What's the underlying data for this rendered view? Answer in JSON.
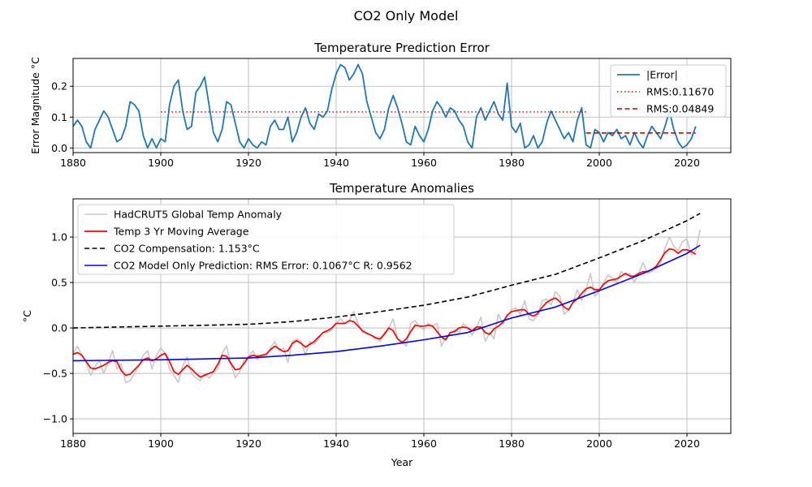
{
  "figure": {
    "title": "CO2 Only Model"
  },
  "chart_data": [
    {
      "type": "line",
      "title": "Temperature Prediction Error",
      "xlabel": "",
      "ylabel": "Error Magnitude °C",
      "xlim": [
        1880,
        2030
      ],
      "ylim": [
        -0.015,
        0.29
      ],
      "x_ticks": [
        1880,
        1900,
        1920,
        1940,
        1960,
        1980,
        2000,
        2020
      ],
      "y_ticks": [
        0.0,
        0.1,
        0.2
      ],
      "y_tick_labels": [
        "0.0",
        "0.1",
        "0.2"
      ],
      "grid": true,
      "legend_position": "upper right",
      "colors": {
        "error": "#1f77b4",
        "rms1": "#ff0000",
        "rms2": "#cc0000"
      },
      "series": [
        {
          "name": "|Error|",
          "style": "solid",
          "x": [
            1880,
            1881,
            1882,
            1883,
            1884,
            1885,
            1886,
            1887,
            1888,
            1889,
            1890,
            1891,
            1892,
            1893,
            1894,
            1895,
            1896,
            1897,
            1898,
            1899,
            1900,
            1901,
            1902,
            1903,
            1904,
            1905,
            1906,
            1907,
            1908,
            1909,
            1910,
            1911,
            1912,
            1913,
            1914,
            1915,
            1916,
            1917,
            1918,
            1919,
            1920,
            1921,
            1922,
            1923,
            1924,
            1925,
            1926,
            1927,
            1928,
            1929,
            1930,
            1931,
            1932,
            1933,
            1934,
            1935,
            1936,
            1937,
            1938,
            1939,
            1940,
            1941,
            1942,
            1943,
            1944,
            1945,
            1946,
            1947,
            1948,
            1949,
            1950,
            1951,
            1952,
            1953,
            1954,
            1955,
            1956,
            1957,
            1958,
            1959,
            1960,
            1961,
            1962,
            1963,
            1964,
            1965,
            1966,
            1967,
            1968,
            1969,
            1970,
            1971,
            1972,
            1973,
            1974,
            1975,
            1976,
            1977,
            1978,
            1979,
            1980,
            1981,
            1982,
            1983,
            1984,
            1985,
            1986,
            1987,
            1988,
            1989,
            1990,
            1991,
            1992,
            1993,
            1994,
            1995,
            1996,
            1997,
            1998,
            1999,
            2000,
            2001,
            2002,
            2003,
            2004,
            2005,
            2006,
            2007,
            2008,
            2009,
            2010,
            2011,
            2012,
            2013,
            2014,
            2015,
            2016,
            2017,
            2018,
            2019,
            2020,
            2021,
            2022
          ],
          "y": [
            0.07,
            0.09,
            0.07,
            0.02,
            0.0,
            0.06,
            0.09,
            0.12,
            0.1,
            0.06,
            0.02,
            0.03,
            0.07,
            0.15,
            0.14,
            0.12,
            0.04,
            0.0,
            0.03,
            0.0,
            0.03,
            0.02,
            0.14,
            0.2,
            0.22,
            0.12,
            0.06,
            0.07,
            0.18,
            0.2,
            0.23,
            0.14,
            0.05,
            0.02,
            0.06,
            0.15,
            0.14,
            0.08,
            0.02,
            0.0,
            0.03,
            0.01,
            0.0,
            0.02,
            0.01,
            0.07,
            0.09,
            0.06,
            0.06,
            0.1,
            0.02,
            0.05,
            0.1,
            0.13,
            0.08,
            0.06,
            0.11,
            0.1,
            0.12,
            0.19,
            0.24,
            0.27,
            0.26,
            0.22,
            0.24,
            0.27,
            0.24,
            0.15,
            0.1,
            0.05,
            0.03,
            0.06,
            0.13,
            0.17,
            0.13,
            0.08,
            0.02,
            0.01,
            0.07,
            0.04,
            0.02,
            0.06,
            0.12,
            0.15,
            0.13,
            0.1,
            0.13,
            0.12,
            0.09,
            0.07,
            0.02,
            0.0,
            0.1,
            0.13,
            0.09,
            0.12,
            0.15,
            0.11,
            0.09,
            0.21,
            0.07,
            0.05,
            0.08,
            0.0,
            0.01,
            0.04,
            0.0,
            0.02,
            0.08,
            0.12,
            0.09,
            0.06,
            0.03,
            0.05,
            0.02,
            0.09,
            0.13,
            0.01,
            0.0,
            0.06,
            0.05,
            0.02,
            0.05,
            0.04,
            0.06,
            0.03,
            0.04,
            0.01,
            0.05,
            0.02,
            0.0,
            0.04,
            0.07,
            0.05,
            0.03,
            0.07,
            0.12,
            0.06,
            0.02,
            0.0,
            0.01,
            0.03,
            0.07
          ]
        },
        {
          "name": "RMS:0.11670",
          "style": "dotted",
          "x": [
            1900,
            1997
          ],
          "y": [
            0.1167,
            0.1167
          ]
        },
        {
          "name": "RMS:0.04849",
          "style": "dashed",
          "x": [
            1997,
            2022
          ],
          "y": [
            0.04849,
            0.04849
          ]
        }
      ]
    },
    {
      "type": "line",
      "title": "Temperature Anomalies",
      "xlabel": "Year",
      "ylabel": "°C",
      "xlim": [
        1880,
        2030
      ],
      "ylim": [
        -1.16,
        1.42
      ],
      "x_ticks": [
        1880,
        1900,
        1920,
        1940,
        1960,
        1980,
        2000,
        2020
      ],
      "y_ticks": [
        -1.0,
        -0.5,
        0.0,
        0.5,
        1.0
      ],
      "y_tick_labels": [
        "−1.0",
        "−0.5",
        "0.0",
        "0.5",
        "1.0"
      ],
      "grid": true,
      "legend_position": "upper left",
      "colors": {
        "hadcrut": "#c8c8c8",
        "moving_avg": "#ff0000",
        "compensation": "#000000",
        "model": "#0000ff"
      },
      "series": [
        {
          "name": "HadCRUT5 Global Temp Anomaly",
          "style": "solid",
          "x": [
            1880,
            1881,
            1882,
            1883,
            1884,
            1885,
            1886,
            1887,
            1888,
            1889,
            1890,
            1891,
            1892,
            1893,
            1894,
            1895,
            1896,
            1897,
            1898,
            1899,
            1900,
            1901,
            1902,
            1903,
            1904,
            1905,
            1906,
            1907,
            1908,
            1909,
            1910,
            1911,
            1912,
            1913,
            1914,
            1915,
            1916,
            1917,
            1918,
            1919,
            1920,
            1921,
            1922,
            1923,
            1924,
            1925,
            1926,
            1927,
            1928,
            1929,
            1930,
            1931,
            1932,
            1933,
            1934,
            1935,
            1936,
            1937,
            1938,
            1939,
            1940,
            1941,
            1942,
            1943,
            1944,
            1945,
            1946,
            1947,
            1948,
            1949,
            1950,
            1951,
            1952,
            1953,
            1954,
            1955,
            1956,
            1957,
            1958,
            1959,
            1960,
            1961,
            1962,
            1963,
            1964,
            1965,
            1966,
            1967,
            1968,
            1969,
            1970,
            1971,
            1972,
            1973,
            1974,
            1975,
            1976,
            1977,
            1978,
            1979,
            1980,
            1981,
            1982,
            1983,
            1984,
            1985,
            1986,
            1987,
            1988,
            1989,
            1990,
            1991,
            1992,
            1993,
            1994,
            1995,
            1996,
            1997,
            1998,
            1999,
            2000,
            2001,
            2002,
            2003,
            2004,
            2005,
            2006,
            2007,
            2008,
            2009,
            2010,
            2011,
            2012,
            2013,
            2014,
            2015,
            2016,
            2017,
            2018,
            2019,
            2020,
            2021,
            2022,
            2023
          ],
          "y": [
            -0.28,
            -0.2,
            -0.3,
            -0.38,
            -0.52,
            -0.42,
            -0.36,
            -0.5,
            -0.38,
            -0.25,
            -0.45,
            -0.4,
            -0.6,
            -0.58,
            -0.5,
            -0.42,
            -0.3,
            -0.25,
            -0.45,
            -0.3,
            -0.22,
            -0.28,
            -0.45,
            -0.52,
            -0.6,
            -0.42,
            -0.32,
            -0.5,
            -0.55,
            -0.58,
            -0.5,
            -0.55,
            -0.5,
            -0.45,
            -0.28,
            -0.2,
            -0.4,
            -0.55,
            -0.48,
            -0.35,
            -0.32,
            -0.25,
            -0.35,
            -0.3,
            -0.32,
            -0.22,
            -0.15,
            -0.25,
            -0.22,
            -0.38,
            -0.15,
            -0.12,
            -0.15,
            -0.3,
            -0.15,
            -0.18,
            -0.12,
            -0.05,
            -0.05,
            -0.02,
            0.05,
            0.1,
            0.05,
            0.08,
            0.18,
            0.05,
            -0.05,
            -0.05,
            -0.08,
            -0.1,
            -0.15,
            -0.05,
            0.0,
            0.1,
            -0.12,
            -0.15,
            -0.2,
            0.05,
            0.08,
            0.02,
            -0.02,
            0.05,
            0.02,
            0.05,
            -0.2,
            -0.1,
            -0.08,
            -0.02,
            -0.05,
            0.05,
            0.0,
            -0.08,
            0.0,
            0.12,
            -0.15,
            -0.05,
            -0.12,
            0.15,
            0.05,
            0.12,
            0.2,
            0.22,
            0.15,
            0.3,
            0.1,
            0.08,
            0.15,
            0.3,
            0.32,
            0.25,
            0.4,
            0.35,
            0.15,
            0.2,
            0.28,
            0.42,
            0.3,
            0.42,
            0.6,
            0.35,
            0.4,
            0.5,
            0.58,
            0.55,
            0.5,
            0.62,
            0.58,
            0.6,
            0.5,
            0.6,
            0.72,
            0.6,
            0.62,
            0.65,
            0.72,
            0.88,
            1.0,
            0.9,
            0.85,
            0.95,
            0.98,
            0.8,
            0.85,
            1.08
          ]
        },
        {
          "name": "Temp 3 Yr Moving Average",
          "style": "solid",
          "x": [
            1880,
            1881,
            1882,
            1883,
            1884,
            1885,
            1886,
            1887,
            1888,
            1889,
            1890,
            1891,
            1892,
            1893,
            1894,
            1895,
            1896,
            1897,
            1898,
            1899,
            1900,
            1901,
            1902,
            1903,
            1904,
            1905,
            1906,
            1907,
            1908,
            1909,
            1910,
            1911,
            1912,
            1913,
            1914,
            1915,
            1916,
            1917,
            1918,
            1919,
            1920,
            1921,
            1922,
            1923,
            1924,
            1925,
            1926,
            1927,
            1928,
            1929,
            1930,
            1931,
            1932,
            1933,
            1934,
            1935,
            1936,
            1937,
            1938,
            1939,
            1940,
            1941,
            1942,
            1943,
            1944,
            1945,
            1946,
            1947,
            1948,
            1949,
            1950,
            1951,
            1952,
            1953,
            1954,
            1955,
            1956,
            1957,
            1958,
            1959,
            1960,
            1961,
            1962,
            1963,
            1964,
            1965,
            1966,
            1967,
            1968,
            1969,
            1970,
            1971,
            1972,
            1973,
            1974,
            1975,
            1976,
            1977,
            1978,
            1979,
            1980,
            1981,
            1982,
            1983,
            1984,
            1985,
            1986,
            1987,
            1988,
            1989,
            1990,
            1991,
            1992,
            1993,
            1994,
            1995,
            1996,
            1997,
            1998,
            1999,
            2000,
            2001,
            2002,
            2003,
            2004,
            2005,
            2006,
            2007,
            2008,
            2009,
            2010,
            2011,
            2012,
            2013,
            2014,
            2015,
            2016,
            2017,
            2018,
            2019,
            2020,
            2021,
            2022
          ],
          "y": [
            -0.29,
            -0.27,
            -0.3,
            -0.37,
            -0.44,
            -0.45,
            -0.43,
            -0.41,
            -0.38,
            -0.36,
            -0.37,
            -0.47,
            -0.52,
            -0.51,
            -0.46,
            -0.41,
            -0.35,
            -0.33,
            -0.36,
            -0.34,
            -0.3,
            -0.28,
            -0.37,
            -0.48,
            -0.51,
            -0.46,
            -0.41,
            -0.45,
            -0.5,
            -0.54,
            -0.52,
            -0.5,
            -0.48,
            -0.4,
            -0.3,
            -0.31,
            -0.39,
            -0.46,
            -0.45,
            -0.39,
            -0.32,
            -0.3,
            -0.31,
            -0.3,
            -0.29,
            -0.24,
            -0.2,
            -0.23,
            -0.26,
            -0.25,
            -0.17,
            -0.14,
            -0.17,
            -0.21,
            -0.18,
            -0.15,
            -0.1,
            -0.05,
            -0.03,
            0.0,
            0.05,
            0.05,
            0.05,
            0.08,
            0.07,
            0.02,
            -0.03,
            -0.06,
            -0.08,
            -0.11,
            -0.12,
            -0.07,
            0.0,
            -0.03,
            -0.12,
            -0.16,
            -0.12,
            -0.04,
            0.03,
            0.02,
            0.02,
            0.03,
            0.02,
            -0.04,
            -0.1,
            -0.13,
            -0.05,
            -0.04,
            0.0,
            0.01,
            0.0,
            -0.03,
            0.01,
            0.01,
            -0.05,
            -0.07,
            -0.01,
            0.02,
            0.06,
            0.14,
            0.18,
            0.19,
            0.2,
            0.2,
            0.15,
            0.13,
            0.16,
            0.23,
            0.28,
            0.31,
            0.33,
            0.29,
            0.23,
            0.2,
            0.28,
            0.32,
            0.38,
            0.43,
            0.45,
            0.42,
            0.42,
            0.48,
            0.52,
            0.53,
            0.54,
            0.57,
            0.6,
            0.57,
            0.57,
            0.6,
            0.62,
            0.62,
            0.64,
            0.68,
            0.75,
            0.83,
            0.87,
            0.86,
            0.82,
            0.86,
            0.86,
            0.84,
            0.81
          ]
        },
        {
          "name": "CO2 Compensation: 1.153°C",
          "style": "dashed",
          "x": [
            1880,
            1890,
            1900,
            1910,
            1920,
            1930,
            1940,
            1950,
            1960,
            1970,
            1980,
            1990,
            2000,
            2010,
            2020,
            2023
          ],
          "y": [
            0.0,
            0.01,
            0.02,
            0.03,
            0.04,
            0.07,
            0.12,
            0.18,
            0.25,
            0.34,
            0.47,
            0.59,
            0.77,
            0.96,
            1.18,
            1.26
          ]
        },
        {
          "name": "CO2 Model Only Prediction: RMS Error: 0.1067°C  R: 0.9562",
          "style": "solid",
          "x": [
            1880,
            1890,
            1900,
            1910,
            1920,
            1930,
            1940,
            1950,
            1960,
            1970,
            1980,
            1990,
            2000,
            2010,
            2020,
            2023
          ],
          "y": [
            -0.36,
            -0.355,
            -0.35,
            -0.34,
            -0.33,
            -0.3,
            -0.26,
            -0.2,
            -0.13,
            -0.05,
            0.11,
            0.23,
            0.41,
            0.6,
            0.82,
            0.91
          ]
        }
      ]
    }
  ]
}
